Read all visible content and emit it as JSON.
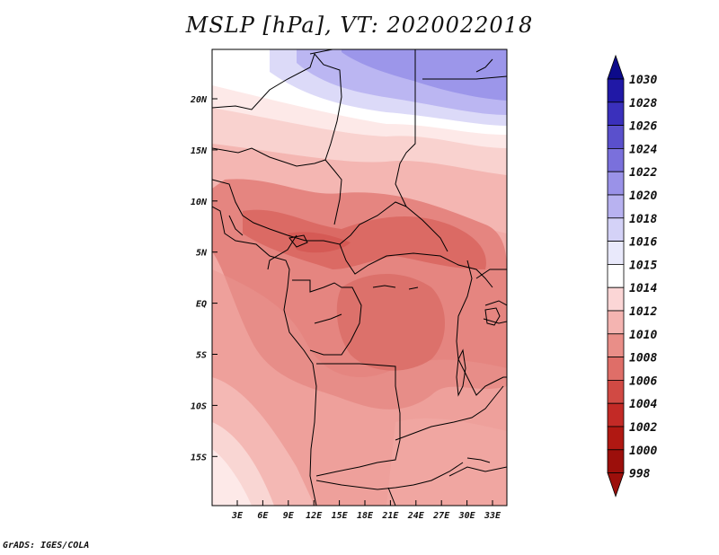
{
  "title": "MSLP [hPa], VT: 2020022018",
  "credit": "GrADS: IGES/COLA",
  "map": {
    "lat_labels": [
      "20N",
      "15N",
      "10N",
      "5N",
      "EQ",
      "5S",
      "10S",
      "15S"
    ],
    "lon_labels": [
      "3E",
      "6E",
      "9E",
      "12E",
      "15E",
      "18E",
      "21E",
      "24E",
      "27E",
      "30E",
      "33E"
    ]
  },
  "colorbar": {
    "levels": [
      "1030",
      "1028",
      "1026",
      "1024",
      "1022",
      "1020",
      "1018",
      "1016",
      "1015",
      "1014",
      "1012",
      "1010",
      "1008",
      "1006",
      "1004",
      "1002",
      "1000",
      "998"
    ],
    "colors": [
      "#0c0a8a",
      "#2018a6",
      "#3a30bc",
      "#5a50cc",
      "#7a70dc",
      "#9a92e8",
      "#b8b2f0",
      "#d4d2f7",
      "#e9e9fb",
      "#ffffff",
      "#fbd6d6",
      "#f4b4b1",
      "#e98e88",
      "#df6e68",
      "#d14a44",
      "#c32a26",
      "#b01812",
      "#9c0f0b"
    ]
  }
}
